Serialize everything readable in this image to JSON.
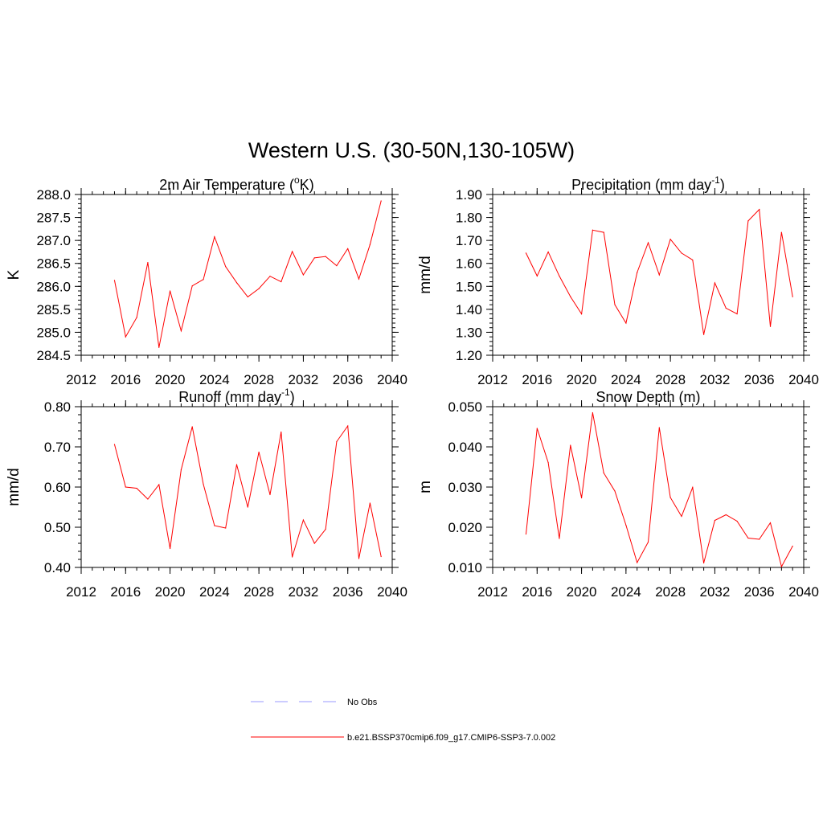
{
  "figure": {
    "title": "Western U.S. (30-50N,130-105W)"
  },
  "legend": {
    "entries": [
      {
        "label": "No Obs",
        "color": "#9999ff",
        "dash": true
      },
      {
        "label": "b.e21.BSSP370cmip6.f09_g17.CMIP6-SSP3-7.0.002",
        "color": "#ff0000",
        "dash": false
      }
    ]
  },
  "colors": {
    "series": "#ff0000",
    "obs": "#9999ff",
    "axis": "#000000"
  },
  "chart_data": [
    {
      "type": "line",
      "title": "2m Air Temperature (",
      "title_sup": "o",
      "title_end": "K)",
      "title_sup_mode": "pre",
      "ylabel": "K",
      "xlim": [
        2012,
        2040
      ],
      "ylim": [
        284.5,
        288.0
      ],
      "xticks": [
        2012,
        2016,
        2020,
        2024,
        2028,
        2032,
        2036,
        2040
      ],
      "yticks": [
        "284.5",
        "285.0",
        "285.5",
        "286.0",
        "286.5",
        "287.0",
        "287.5",
        "288.0"
      ],
      "yticks_val": [
        284.5,
        285.0,
        285.5,
        286.0,
        286.5,
        287.0,
        287.5,
        288.0
      ],
      "yminor": 0.1,
      "x": [
        2015,
        2016,
        2017,
        2018,
        2019,
        2020,
        2021,
        2022,
        2023,
        2024,
        2025,
        2026,
        2027,
        2028,
        2029,
        2030,
        2031,
        2032,
        2033,
        2034,
        2035,
        2036,
        2037,
        2038,
        2039
      ],
      "series": [
        {
          "values": [
            286.13,
            284.9,
            285.32,
            286.52,
            284.67,
            285.9,
            285.03,
            286.01,
            286.15,
            287.08,
            286.43,
            286.08,
            285.77,
            285.95,
            286.22,
            286.1,
            286.76,
            286.25,
            286.62,
            286.65,
            286.45,
            286.82,
            286.16,
            286.91,
            287.86
          ]
        }
      ]
    },
    {
      "type": "line",
      "title": "Precipitation (mm day",
      "title_sup": "-1",
      "title_end": ")",
      "ylabel": "mm/d",
      "xlim": [
        2012,
        2040
      ],
      "ylim": [
        1.2,
        1.9
      ],
      "xticks": [
        2012,
        2016,
        2020,
        2024,
        2028,
        2032,
        2036,
        2040
      ],
      "yticks": [
        "1.20",
        "1.30",
        "1.40",
        "1.50",
        "1.60",
        "1.70",
        "1.80",
        "1.90"
      ],
      "yticks_val": [
        1.2,
        1.3,
        1.4,
        1.5,
        1.6,
        1.7,
        1.8,
        1.9
      ],
      "yminor": 0.02,
      "x": [
        2015,
        2016,
        2017,
        2018,
        2019,
        2020,
        2021,
        2022,
        2023,
        2024,
        2025,
        2026,
        2027,
        2028,
        2029,
        2030,
        2031,
        2032,
        2033,
        2034,
        2035,
        2036,
        2037,
        2038,
        2039
      ],
      "series": [
        {
          "values": [
            1.645,
            1.545,
            1.65,
            1.545,
            1.455,
            1.38,
            1.745,
            1.735,
            1.42,
            1.34,
            1.56,
            1.69,
            1.55,
            1.705,
            1.645,
            1.615,
            1.29,
            1.515,
            1.405,
            1.38,
            1.785,
            1.835,
            1.325,
            1.735,
            1.455
          ]
        }
      ]
    },
    {
      "type": "line",
      "title": "Runoff (mm day",
      "title_sup": "-1",
      "title_end": ")",
      "ylabel": "mm/d",
      "xlim": [
        2012,
        2040
      ],
      "ylim": [
        0.4,
        0.8
      ],
      "xticks": [
        2012,
        2016,
        2020,
        2024,
        2028,
        2032,
        2036,
        2040
      ],
      "yticks": [
        "0.40",
        "0.50",
        "0.60",
        "0.70",
        "0.80"
      ],
      "yticks_val": [
        0.4,
        0.5,
        0.6,
        0.7,
        0.8
      ],
      "yminor": 0.02,
      "x": [
        2015,
        2016,
        2017,
        2018,
        2019,
        2020,
        2021,
        2022,
        2023,
        2024,
        2025,
        2026,
        2027,
        2028,
        2029,
        2030,
        2031,
        2032,
        2033,
        2034,
        2035,
        2036,
        2037,
        2038,
        2039
      ],
      "series": [
        {
          "values": [
            0.706,
            0.6,
            0.597,
            0.57,
            0.606,
            0.447,
            0.643,
            0.75,
            0.607,
            0.504,
            0.498,
            0.656,
            0.55,
            0.687,
            0.581,
            0.737,
            0.426,
            0.518,
            0.46,
            0.495,
            0.713,
            0.752,
            0.422,
            0.56,
            0.427
          ]
        }
      ]
    },
    {
      "type": "line",
      "title": "Snow Depth (m)",
      "ylabel": "m",
      "xlim": [
        2012,
        2040
      ],
      "ylim": [
        0.01,
        0.05
      ],
      "xticks": [
        2012,
        2016,
        2020,
        2024,
        2028,
        2032,
        2036,
        2040
      ],
      "yticks": [
        "0.010",
        "0.020",
        "0.030",
        "0.040",
        "0.050"
      ],
      "yticks_val": [
        0.01,
        0.02,
        0.03,
        0.04,
        0.05
      ],
      "yminor": 0.002,
      "x": [
        2015,
        2016,
        2017,
        2018,
        2019,
        2020,
        2021,
        2022,
        2023,
        2024,
        2025,
        2026,
        2027,
        2028,
        2029,
        2030,
        2031,
        2032,
        2033,
        2034,
        2035,
        2036,
        2037,
        2038,
        2039
      ],
      "series": [
        {
          "values": [
            0.0183,
            0.0446,
            0.0361,
            0.0172,
            0.0404,
            0.0273,
            0.0485,
            0.0335,
            0.029,
            0.0205,
            0.0112,
            0.0163,
            0.0448,
            0.0274,
            0.0227,
            0.0299,
            0.0111,
            0.0217,
            0.0231,
            0.0215,
            0.0173,
            0.017,
            0.0211,
            0.0102,
            0.0153
          ]
        }
      ]
    }
  ]
}
